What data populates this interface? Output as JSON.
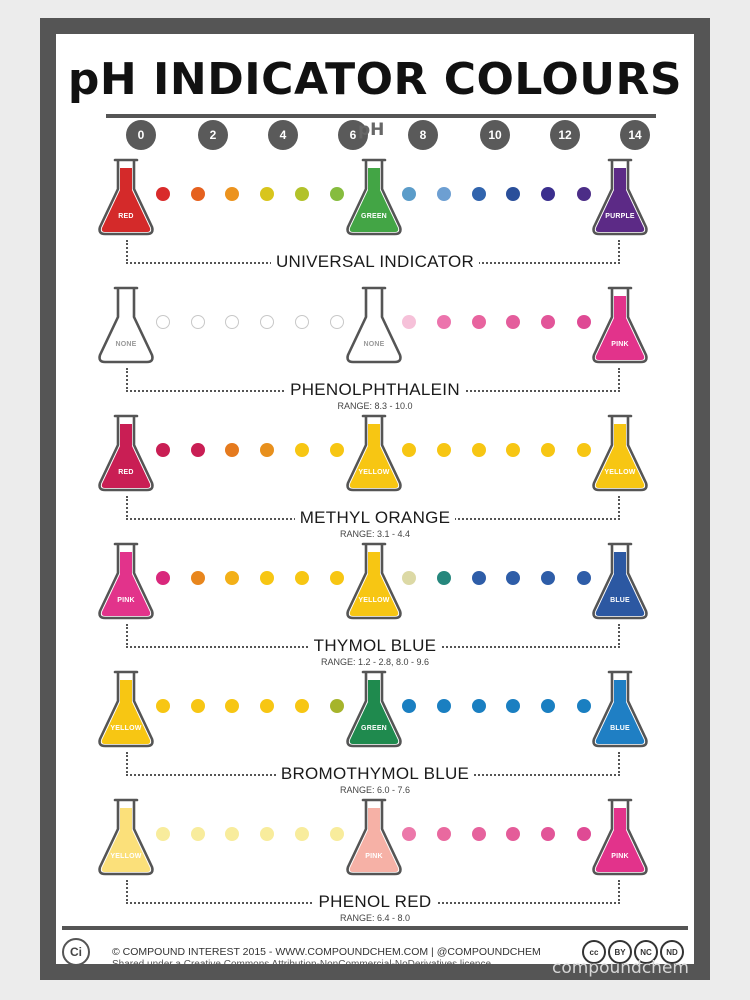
{
  "title": "pH INDICATOR COLOURS",
  "scale": {
    "label": "pH",
    "ticks": [
      "0",
      "2",
      "4",
      "6",
      "8",
      "10",
      "12",
      "14"
    ]
  },
  "indicators": [
    {
      "name": "UNIVERSAL INDICATOR",
      "range": "",
      "flasks": [
        {
          "label": "RED",
          "color": "#d42a2a"
        },
        {
          "label": "GREEN",
          "color": "#43a545"
        },
        {
          "label": "PURPLE",
          "color": "#5c2a86"
        }
      ],
      "dots_left": [
        "#d92b2b",
        "#e5611f",
        "#ec931e",
        "#d8c51c",
        "#b2c22a",
        "#86bc3e"
      ],
      "dots_right": [
        "#5b9cc9",
        "#6d9fd2",
        "#3164ad",
        "#2a4f9a",
        "#3b2f8e",
        "#4c2d87"
      ]
    },
    {
      "name": "PHENOLPHTHALEIN",
      "range": "RANGE: 8.3 - 10.0",
      "flasks": [
        {
          "label": "NONE",
          "color": "#ffffff"
        },
        {
          "label": "NONE",
          "color": "#ffffff"
        },
        {
          "label": "PINK",
          "color": "#e2338b"
        }
      ],
      "dots_left": [
        "#ffffff",
        "#ffffff",
        "#ffffff",
        "#ffffff",
        "#ffffff",
        "#ffffff"
      ],
      "dots_right": [
        "#f6c1d9",
        "#ec74ad",
        "#e8649f",
        "#e45d9c",
        "#e25599",
        "#df4a94"
      ]
    },
    {
      "name": "METHYL ORANGE",
      "range": "RANGE: 3.1 - 4.4",
      "flasks": [
        {
          "label": "RED",
          "color": "#c91e54"
        },
        {
          "label": "YELLOW",
          "color": "#f7c613"
        },
        {
          "label": "YELLOW",
          "color": "#f7c613"
        }
      ],
      "dots_left": [
        "#c91e54",
        "#c91e54",
        "#e57a1e",
        "#e8901d",
        "#f7c613",
        "#f7c613"
      ],
      "dots_right": [
        "#f7c613",
        "#f7c613",
        "#f7c613",
        "#f7c613",
        "#f7c613",
        "#f7c613"
      ]
    },
    {
      "name": "THYMOL BLUE",
      "range": "RANGE: 1.2 - 2.8, 8.0 - 9.6",
      "flasks": [
        {
          "label": "PINK",
          "color": "#e2338b"
        },
        {
          "label": "YELLOW",
          "color": "#f7c613"
        },
        {
          "label": "BLUE",
          "color": "#2c58a2"
        }
      ],
      "dots_left": [
        "#d9287c",
        "#e8861d",
        "#f3b018",
        "#f7c613",
        "#f7c613",
        "#f7c613"
      ],
      "dots_right": [
        "#dcd9a5",
        "#26877d",
        "#2e5da8",
        "#2e5da8",
        "#2e5da8",
        "#2e5da8"
      ]
    },
    {
      "name": "BROMOTHYMOL BLUE",
      "range": "RANGE: 6.0 - 7.6",
      "flasks": [
        {
          "label": "YELLOW",
          "color": "#f7c613"
        },
        {
          "label": "GREEN",
          "color": "#1f8a4e"
        },
        {
          "label": "BLUE",
          "color": "#1f7fc4"
        }
      ],
      "dots_left": [
        "#f7c613",
        "#f7c613",
        "#f7c613",
        "#f7c613",
        "#f7c613",
        "#a6b42b"
      ],
      "dots_right": [
        "#1a7fc1",
        "#1a7fc1",
        "#1a7fc1",
        "#1a7fc1",
        "#1a7fc1",
        "#1a7fc1"
      ]
    },
    {
      "name": "PHENOL RED",
      "range": "RANGE: 6.4 - 8.0",
      "flasks": [
        {
          "label": "YELLOW",
          "color": "#fbe07a"
        },
        {
          "label": "PINK",
          "color": "#f6b1a6"
        },
        {
          "label": "PINK",
          "color": "#e2338b"
        }
      ],
      "dots_left": [
        "#f8ec9c",
        "#f8ec9c",
        "#f8ec9c",
        "#f8ec9c",
        "#f8ec9c",
        "#f8ec9c"
      ],
      "dots_right": [
        "#ec78aa",
        "#e9699f",
        "#e6629d",
        "#e45c99",
        "#e25598",
        "#df4a94"
      ]
    }
  ],
  "footer": {
    "logo_text": "Ci",
    "credit": "© COMPOUND INTEREST 2015 - WWW.COMPOUNDCHEM.COM | @COMPOUNDCHEM",
    "licence": "Shared under a Creative Commons Attribution-NonCommercial-NoDerivatives licence.",
    "cc_badges": [
      "cc",
      "BY",
      "NC",
      "ND"
    ]
  },
  "watermark": "compoundchem"
}
